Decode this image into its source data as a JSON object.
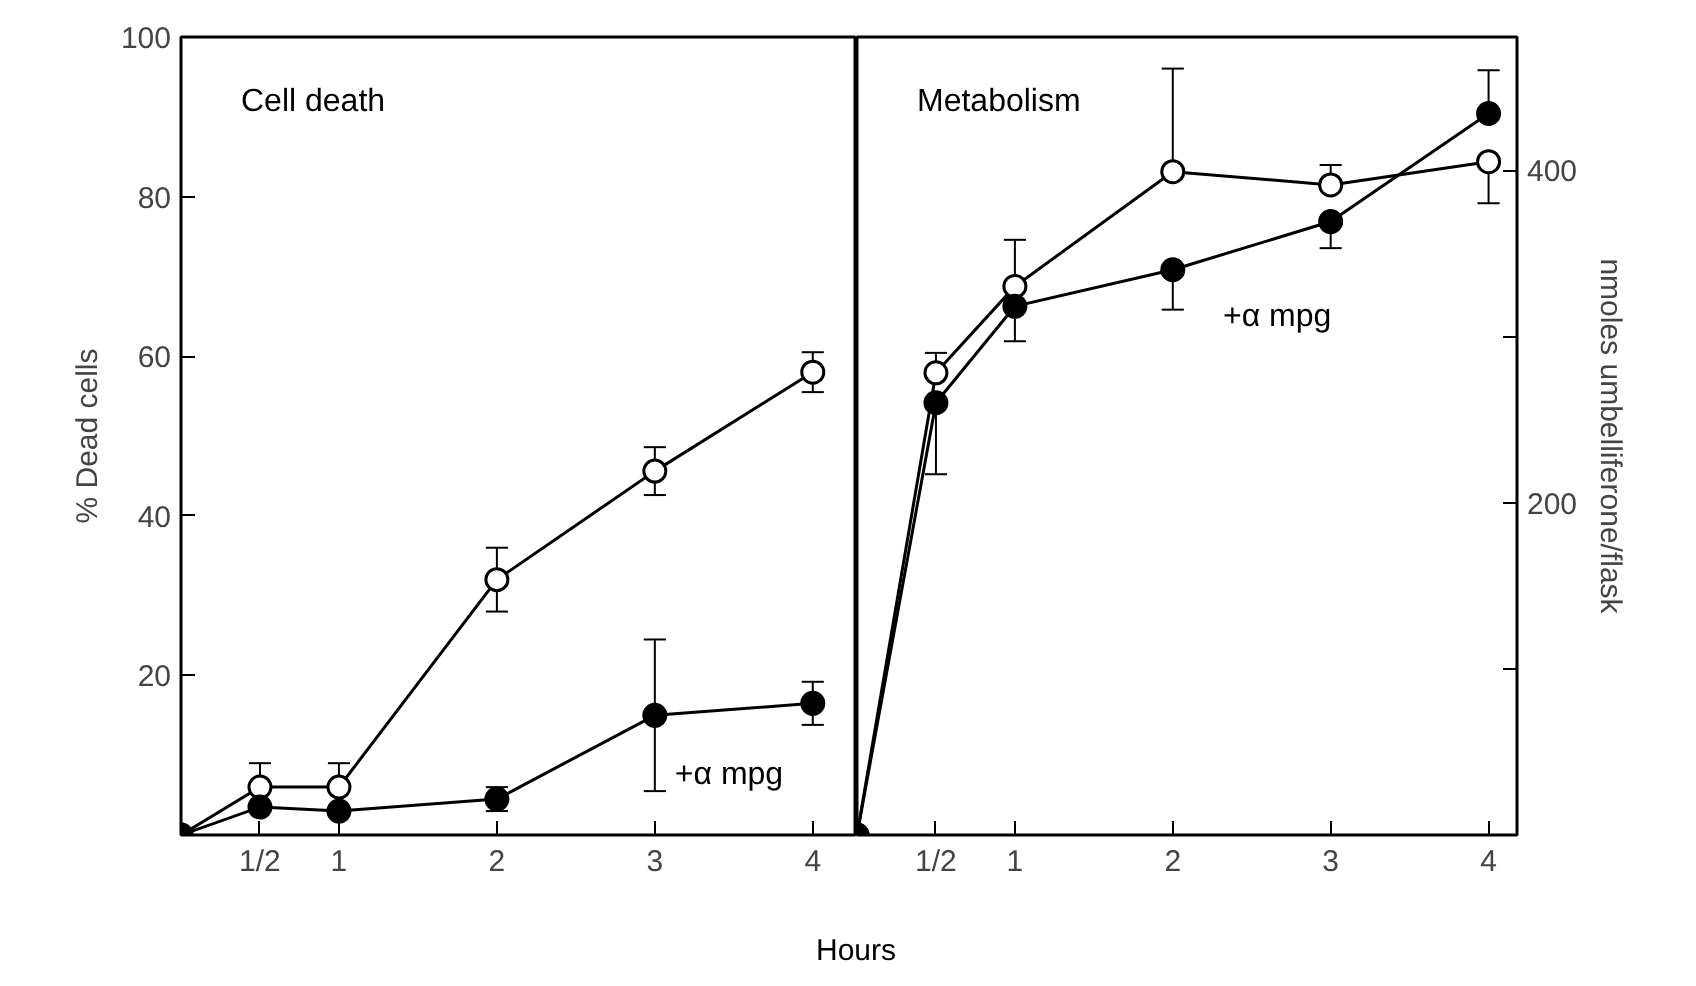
{
  "chart_data": [
    {
      "type": "line",
      "title": "Cell death",
      "xlabel": "Hours",
      "ylabel": "% Dead cells",
      "x": [
        0,
        0.5,
        1,
        2,
        3,
        4
      ],
      "series": [
        {
          "color": "#000000",
          "marker": "circle_open",
          "values": [
            0,
            6,
            6,
            32,
            45.6,
            58
          ],
          "errors": [
            null,
            [
              6,
              9
            ],
            [
              6,
              9
            ],
            4,
            3,
            2.5
          ]
        },
        {
          "color": "#000000",
          "marker": "circle",
          "values": [
            0,
            3.5,
            3,
            4.5,
            15,
            16.5
          ],
          "errors": [
            null,
            null,
            null,
            1.5,
            9.5,
            2.7
          ]
        }
      ],
      "xlim": [
        0,
        4.28
      ],
      "xticks": [
        {
          "value": 0.5,
          "label": "1/2"
        },
        1,
        2,
        3,
        4
      ],
      "ylim": [
        0,
        100
      ],
      "yticks": [
        20,
        40,
        60,
        80,
        100
      ],
      "annotations": [
        {
          "text": "+α mpg",
          "x": 3,
          "y": 15
        }
      ],
      "grid": false,
      "line_style": "solid"
    },
    {
      "type": "line",
      "title": "Metabolism",
      "y2label": "nmoles umbelliferone/flask",
      "x": [
        0,
        0.5,
        1,
        2,
        3,
        4
      ],
      "series": [
        {
          "color": "#000000",
          "marker": "circle_open",
          "axis": "y2",
          "values": [
            0,
            278,
            330,
            399,
            391,
            405
          ],
          "errors": [
            null,
            [
              278,
              290
            ],
            [
              330,
              358
            ],
            [
              399,
              461
            ],
            [
              391,
              403
            ],
            [
              380,
              405
            ]
          ]
        },
        {
          "color": "#000000",
          "marker": "circle",
          "axis": "y2",
          "values": [
            0,
            260,
            318,
            340,
            369,
            434
          ],
          "errors": [
            null,
            [
              217,
              260
            ],
            [
              297,
              318
            ],
            [
              316,
              340
            ],
            [
              353,
              369
            ],
            [
              434,
              460
            ]
          ]
        }
      ],
      "xlim": [
        0,
        4.18
      ],
      "xticks": [
        {
          "value": 0.5,
          "label": "1/2"
        },
        1,
        2,
        3,
        4
      ],
      "y2lim": [
        0,
        480
      ],
      "y2ticks": [
        {
          "value": 100,
          "label": null
        },
        200,
        {
          "value": 300,
          "label": null
        },
        400
      ],
      "annotations": [
        "+α mpg"
      ],
      "grid": false,
      "line_style": "solid"
    }
  ]
}
